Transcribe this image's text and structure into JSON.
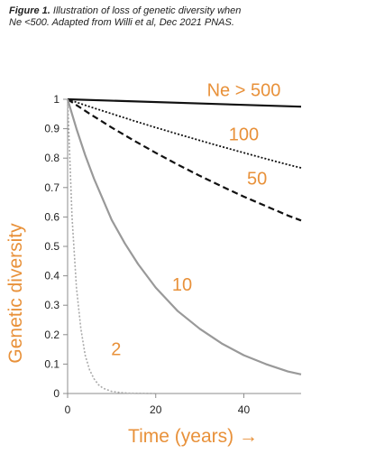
{
  "figure": {
    "caption_label": "Figure 1.",
    "caption_text": " Illustration of loss of genetic diversity when Ne <500. Adapted from Willi et al, Dec 2021 PNAS."
  },
  "colors": {
    "accent": "#E8913A",
    "axis": "#8c8c8c",
    "tick_text": "#222222"
  },
  "chart_data": {
    "type": "line",
    "xlabel": "Time (years) →",
    "ylabel": "Genetic diversity",
    "xlim": [
      0,
      53
    ],
    "ylim": [
      0,
      1
    ],
    "x_ticks": [
      0,
      20,
      40
    ],
    "y_ticks": [
      0,
      0.1,
      0.2,
      0.3,
      0.4,
      0.5,
      0.6,
      0.7,
      0.8,
      0.9,
      1
    ],
    "grid": false,
    "legend": "none",
    "series": [
      {
        "name": "Ne > 500",
        "color": "#111111",
        "dash": "solid",
        "width": 2.2,
        "x": [
          0,
          53
        ],
        "y": [
          1,
          0.975
        ],
        "label_at": [
          40,
          1.01
        ]
      },
      {
        "name": "100",
        "color": "#111111",
        "dash": "dotted",
        "width": 1.8,
        "x": [
          0,
          5,
          10,
          15,
          20,
          25,
          30,
          35,
          40,
          45,
          50,
          53
        ],
        "y": [
          1,
          0.975,
          0.951,
          0.927,
          0.904,
          0.882,
          0.86,
          0.839,
          0.818,
          0.798,
          0.778,
          0.767
        ],
        "label_at": [
          40,
          0.86
        ]
      },
      {
        "name": "50",
        "color": "#111111",
        "dash": "dashed",
        "width": 2.2,
        "x": [
          0,
          5,
          10,
          15,
          20,
          25,
          30,
          35,
          40,
          45,
          50,
          53
        ],
        "y": [
          1,
          0.951,
          0.904,
          0.86,
          0.818,
          0.778,
          0.74,
          0.704,
          0.669,
          0.637,
          0.605,
          0.588
        ],
        "label_at": [
          43,
          0.71
        ]
      },
      {
        "name": "10",
        "color": "#999999",
        "dash": "solid",
        "width": 2.2,
        "x": [
          0,
          2,
          4,
          6,
          8,
          10,
          13,
          16,
          20,
          25,
          30,
          35,
          40,
          45,
          50,
          53
        ],
        "y": [
          1,
          0.9,
          0.81,
          0.73,
          0.66,
          0.59,
          0.51,
          0.44,
          0.36,
          0.28,
          0.22,
          0.17,
          0.13,
          0.1,
          0.075,
          0.065
        ],
        "label_at": [
          26,
          0.35
        ]
      },
      {
        "name": "2",
        "color": "#aaaaaa",
        "dash": "dotted",
        "width": 1.6,
        "x": [
          0,
          1,
          2,
          3,
          4,
          5,
          6,
          7,
          8,
          10,
          12,
          14,
          16,
          18,
          20
        ],
        "y": [
          1,
          0.6,
          0.36,
          0.22,
          0.13,
          0.08,
          0.05,
          0.03,
          0.018,
          0.007,
          0.003,
          0.001,
          0.0005,
          0.0002,
          0
        ],
        "label_at": [
          11,
          0.13
        ]
      }
    ]
  }
}
